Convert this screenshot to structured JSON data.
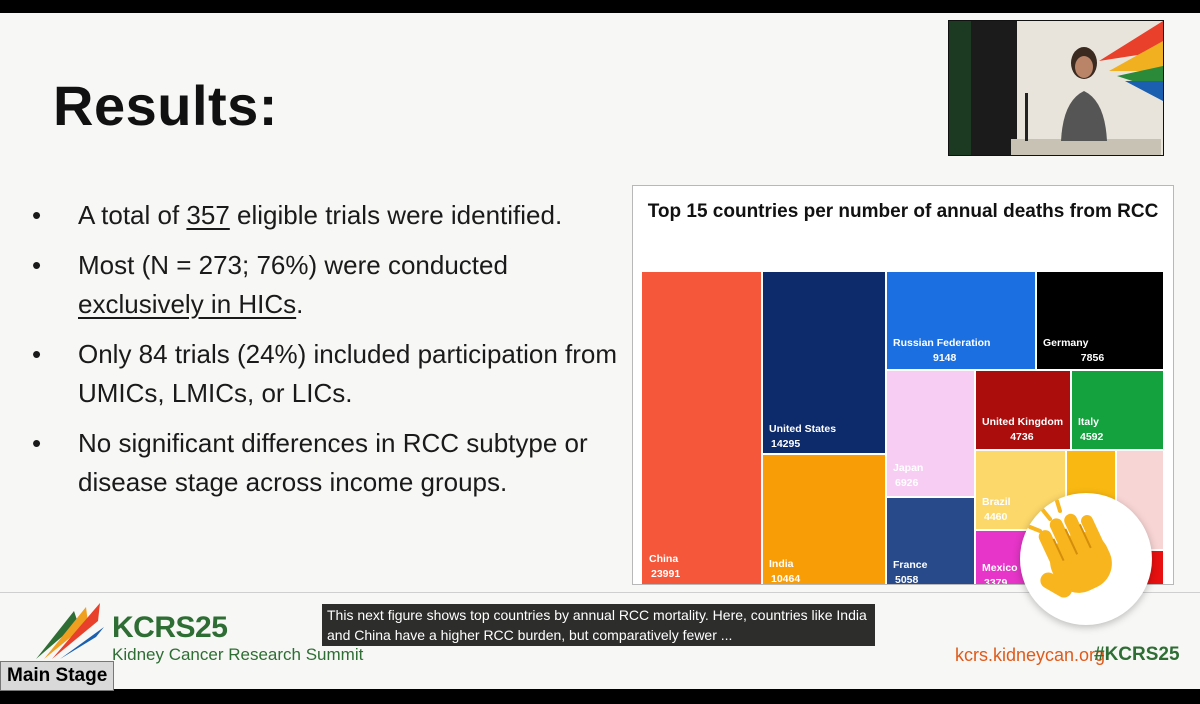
{
  "slide": {
    "title": "Results:",
    "bullets": [
      {
        "pre": "A total of ",
        "em": "357",
        "post": " eligible trials were identified."
      },
      {
        "pre": "Most (N = 273; 76%) were conducted ",
        "em": "exclusively in HICs",
        "post": "."
      },
      {
        "pre": "Only 84 trials (24%) included participation from UMICs, LMICs, or LICs.",
        "em": "",
        "post": ""
      },
      {
        "pre": "No significant differences in RCC subtype or disease stage across income groups.",
        "em": "",
        "post": ""
      }
    ],
    "bullet_glyph": "•"
  },
  "chart_data": {
    "type": "treemap",
    "title": "Top 15 countries per number of annual deaths from RCC",
    "items": [
      {
        "label": "China",
        "value": 23991,
        "color": "#f4573a"
      },
      {
        "label": "United States",
        "value": 14295,
        "color": "#0d2a6b"
      },
      {
        "label": "India",
        "value": 10464,
        "color": "#f99d07"
      },
      {
        "label": "Russian Federation",
        "value": 9148,
        "color": "#1b6fe0"
      },
      {
        "label": "Germany",
        "value": 7856,
        "color": "#000000"
      },
      {
        "label": "Japan",
        "value": 6926,
        "color": "#f7cdf3"
      },
      {
        "label": "France",
        "value": 5058,
        "color": "#284a8a"
      },
      {
        "label": "United Kingdom",
        "value": 4736,
        "color": "#ab0c0c"
      },
      {
        "label": "Italy",
        "value": 4592,
        "color": "#13a23d"
      },
      {
        "label": "Brazil",
        "value": 4460,
        "color": "#fcd86a"
      },
      {
        "label": "Mexico",
        "value": 3379,
        "color": "#e635c8"
      },
      {
        "label": "",
        "value": 0,
        "color": "#f9b912"
      },
      {
        "label": "",
        "value": 0,
        "color": "#f8d5d5"
      },
      {
        "label": "",
        "value": 0,
        "color": "#e81010"
      }
    ]
  },
  "footer": {
    "brand_name": "KCRS25",
    "brand_sub": "Kidney Cancer Research Summit",
    "site": "kcrs.kidneycan.org",
    "hashtag": "#KCRS25",
    "colors": {
      "green": "#2e6e34",
      "orange": "#e05a1a"
    }
  },
  "overlay": {
    "caption": "This next figure shows top countries by annual RCC mortality. Here, countries like India and China have a higher RCC burden, but comparatively fewer ...",
    "stage_label": "Main Stage",
    "reaction_icon": "clapping-hand-emoji"
  },
  "video": {
    "icon": "speaker-video-thumbnail"
  }
}
